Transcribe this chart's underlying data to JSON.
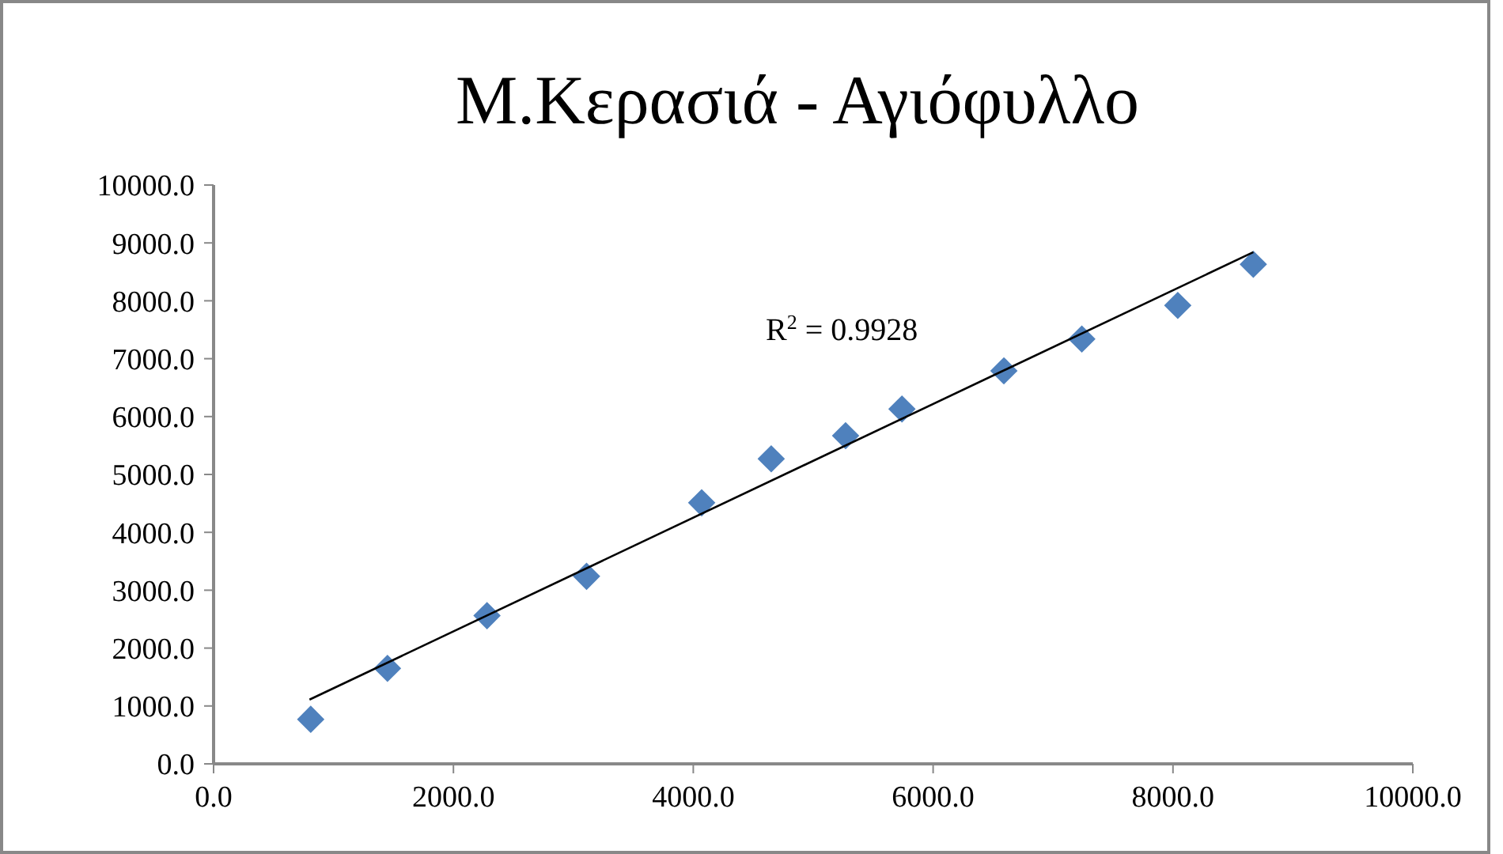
{
  "chart_data": {
    "type": "scatter",
    "title": "Μ.Κερασιά - Αγιόφυλλο",
    "grid": false,
    "xlim": [
      0,
      10000
    ],
    "xticks": [
      {
        "value": 0,
        "label": "0.0"
      },
      {
        "value": 2000,
        "label": "2000.0"
      },
      {
        "value": 4000,
        "label": "4000.0"
      },
      {
        "value": 6000,
        "label": "6000.0"
      },
      {
        "value": 8000,
        "label": "8000.0"
      },
      {
        "value": 10000,
        "label": "10000.0"
      }
    ],
    "ylim": [
      0,
      10000
    ],
    "yticks": [
      {
        "value": 0,
        "label": "0.0"
      },
      {
        "value": 1000,
        "label": "1000.0"
      },
      {
        "value": 2000,
        "label": "2000.0"
      },
      {
        "value": 3000,
        "label": "3000.0"
      },
      {
        "value": 4000,
        "label": "4000.0"
      },
      {
        "value": 5000,
        "label": "5000.0"
      },
      {
        "value": 6000,
        "label": "6000.0"
      },
      {
        "value": 7000,
        "label": "7000.0"
      },
      {
        "value": 8000,
        "label": "8000.0"
      },
      {
        "value": 9000,
        "label": "9000.0"
      },
      {
        "value": 10000,
        "label": "10000.0"
      }
    ],
    "series": [
      {
        "marker": "diamond",
        "color": "#4f81bd",
        "x": [
          810,
          1450,
          2280,
          3110,
          4070,
          4650,
          5270,
          5740,
          6590,
          7240,
          8040,
          8670
        ],
        "values": [
          770,
          1650,
          2560,
          3240,
          4510,
          5270,
          5670,
          6130,
          6790,
          7340,
          7920,
          8630
        ]
      },
      {
        "type": "line",
        "color": "#000000",
        "x": [
          800,
          8670
        ],
        "values": [
          1110,
          8840
        ]
      }
    ],
    "annotations": [
      "R$^{2}$ = 0.9928"
    ]
  }
}
